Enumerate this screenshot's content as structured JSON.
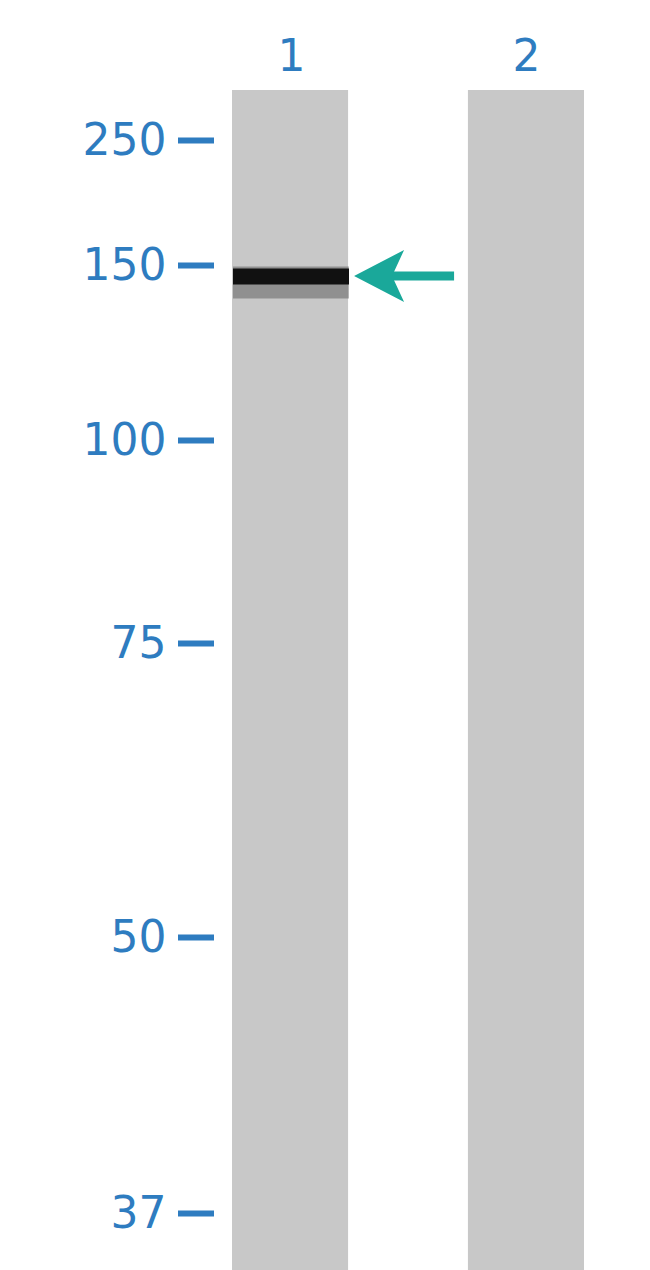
{
  "chart_data": {
    "type": "western_blot",
    "categories": [
      "1",
      "2"
    ],
    "values": [
      148,
      null
    ],
    "ylim": [
      37,
      250
    ],
    "yticks": [
      37,
      50,
      75,
      100,
      150,
      250
    ],
    "color": "#111111"
  }
}
